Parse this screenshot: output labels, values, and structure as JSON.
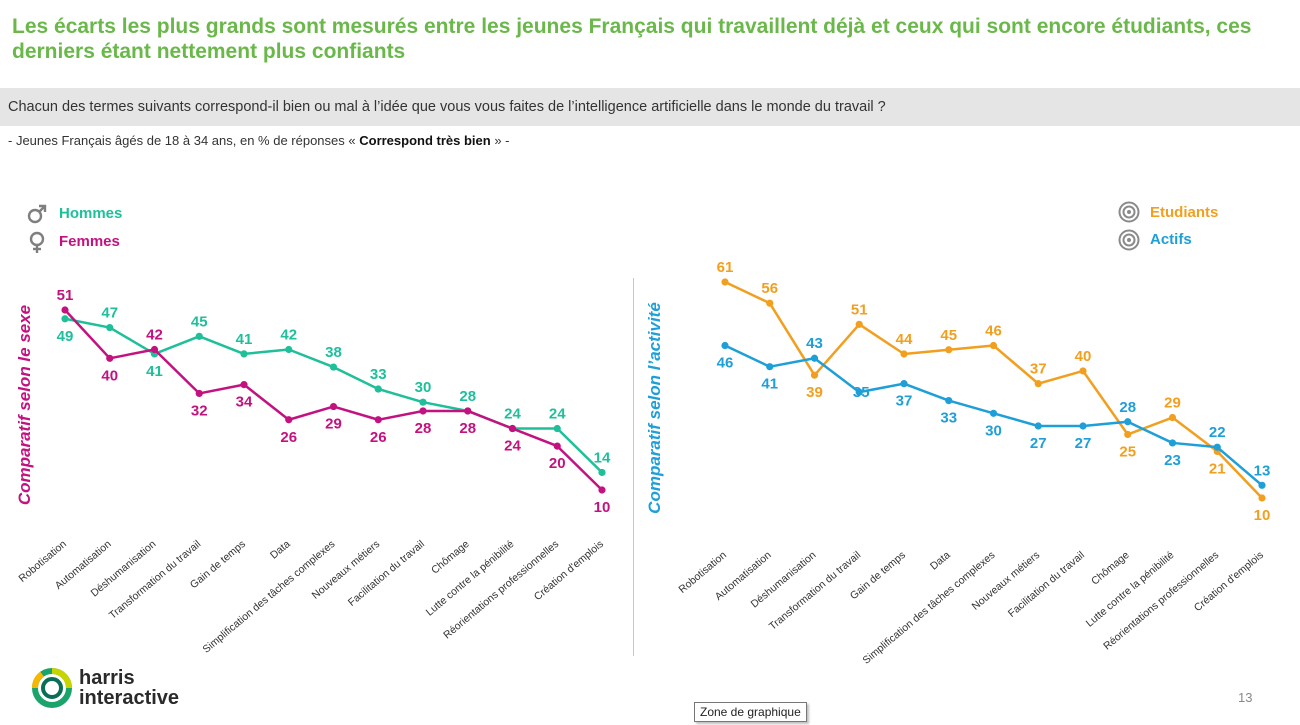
{
  "title": "Les écarts les plus grands sont mesurés entre les jeunes Français qui travaillent déjà et ceux qui sont encore étudiants, ces derniers étant nettement plus confiants",
  "question": "Chacun des termes suivants correspond-il bien ou mal à l’idée que vous vous faites de l’intelligence artificielle dans le monde du travail ?",
  "subtitle_prefix": "- Jeunes Français âgés de 18 à 34 ans, en % de réponses « ",
  "subtitle_bold": "Correspond très bien",
  "subtitle_suffix": " » -",
  "legend_left": [
    {
      "label": "Hommes",
      "icon": "male-symbol-icon",
      "color": "#1fbf9a"
    },
    {
      "label": "Femmes",
      "icon": "female-symbol-icon",
      "color": "#c3127f"
    }
  ],
  "legend_right": [
    {
      "label": "Etudiants",
      "icon": "target-icon",
      "color": "#f29f1f"
    },
    {
      "label": "Actifs",
      "icon": "target-icon",
      "color": "#1e9fd8"
    }
  ],
  "page_number": "13",
  "tooltip": "Zone de graphique",
  "logo": {
    "line1": "harris",
    "line2": "interactive"
  },
  "chart_data": [
    {
      "type": "line",
      "ylabel": "Comparatif selon le sexe",
      "ylabel_color": "#c3127f",
      "categories": [
        "Robotisation",
        "Automatisation",
        "Déshumanisation",
        "Transformation du travail",
        "Gain de temps",
        "Data",
        "Simplification des tâches complexes",
        "Nouveaux métiers",
        "Facilitation du travail",
        "Chômage",
        "Lutte contre la pénibilité",
        "Réorientations professionnelles",
        "Création d'emplois"
      ],
      "ylim": [
        0,
        65
      ],
      "series": [
        {
          "name": "Hommes",
          "color": "#1fbf9a",
          "values": [
            49,
            47,
            41,
            45,
            41,
            42,
            38,
            33,
            30,
            28,
            24,
            24,
            14
          ]
        },
        {
          "name": "Femmes",
          "color": "#c3127f",
          "values": [
            51,
            40,
            42,
            32,
            34,
            26,
            29,
            26,
            28,
            28,
            24,
            20,
            10
          ]
        }
      ]
    },
    {
      "type": "line",
      "ylabel": "Comparatif selon l’activité",
      "ylabel_color": "#1e9fd8",
      "categories": [
        "Robotisation",
        "Automatisation",
        "Déshumanisation",
        "Transformation du travail",
        "Gain de temps",
        "Data",
        "Simplification des tâches complexes",
        "Nouveaux métiers",
        "Facilitation du travail",
        "Chômage",
        "Lutte contre la pénibilité",
        "Réorientations professionnelles",
        "Création d'emplois"
      ],
      "ylim": [
        0,
        65
      ],
      "series": [
        {
          "name": "Etudiants",
          "color": "#f29f1f",
          "values": [
            61,
            56,
            39,
            51,
            44,
            45,
            46,
            37,
            40,
            25,
            29,
            21,
            10
          ]
        },
        {
          "name": "Actifs",
          "color": "#1e9fd8",
          "values": [
            46,
            41,
            43,
            35,
            37,
            33,
            30,
            27,
            27,
            28,
            23,
            22,
            13
          ]
        }
      ]
    }
  ]
}
